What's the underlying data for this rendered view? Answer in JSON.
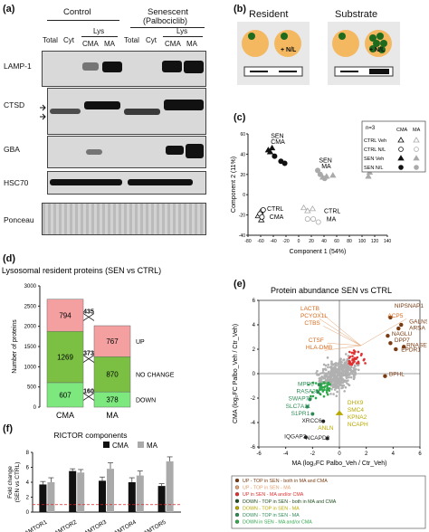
{
  "panels": {
    "a": "(a)",
    "b": "(b)",
    "c": "(c)",
    "d": "(d)",
    "e": "(e)",
    "f": "(f)"
  },
  "blot": {
    "group_control": "Control",
    "group_senescent": "Senescent",
    "group_senescent_sub": "(Palbociclib)",
    "col_total": "Total",
    "col_cyt": "Cyt",
    "col_lys": "Lys",
    "col_cma": "CMA",
    "col_ma": "MA",
    "rows": [
      "LAMP-1",
      "CTSD",
      "GBA",
      "HSC70",
      "Ponceau"
    ]
  },
  "schematic": {
    "resident": "Resident",
    "substrate": "Substrate",
    "nl": "+ N/L"
  },
  "chart_data": [
    {
      "type": "scatter",
      "xlabel": "Component 1 (54%)",
      "ylabel": "Component 2 (11%)",
      "xlim": [
        -80,
        140
      ],
      "ylim": [
        -40,
        60
      ],
      "x_ticks": [
        -80,
        -60,
        -40,
        -20,
        0,
        20,
        40,
        60,
        80,
        100,
        120,
        140
      ],
      "y_ticks": [
        -40,
        -20,
        0,
        20,
        40,
        60
      ],
      "annotation": "n=3",
      "legend_headers": [
        "CMA",
        "MA"
      ],
      "legend_rows": [
        "CTRL Veh",
        "CTRL N/L",
        "SEN Veh",
        "SEN N/L"
      ],
      "group_labels": [
        "SEN CMA",
        "SEN MA",
        "CTRL CMA",
        "CTRL MA"
      ],
      "points": [
        {
          "group": "SEN Veh CMA",
          "x": -48,
          "y": 44
        },
        {
          "group": "SEN Veh CMA",
          "x": -42,
          "y": 46
        },
        {
          "group": "SEN Veh CMA",
          "x": -45,
          "y": 42
        },
        {
          "group": "SEN N/L CMA",
          "x": -38,
          "y": 38
        },
        {
          "group": "SEN N/L CMA",
          "x": -28,
          "y": 33
        },
        {
          "group": "SEN N/L CMA",
          "x": -22,
          "y": 31
        },
        {
          "group": "CTRL Veh CMA",
          "x": -60,
          "y": -17
        },
        {
          "group": "CTRL Veh CMA",
          "x": -64,
          "y": -21
        },
        {
          "group": "CTRL Veh CMA",
          "x": -59,
          "y": -25
        },
        {
          "group": "CTRL N/L CMA",
          "x": -56,
          "y": -15
        },
        {
          "group": "CTRL N/L CMA",
          "x": -61,
          "y": -19
        },
        {
          "group": "CTRL N/L CMA",
          "x": -58,
          "y": -22
        },
        {
          "group": "SEN Veh MA",
          "x": 38,
          "y": 17
        },
        {
          "group": "SEN Veh MA",
          "x": 44,
          "y": 18
        },
        {
          "group": "SEN Veh MA",
          "x": 54,
          "y": 19
        },
        {
          "group": "SEN N/L MA",
          "x": 30,
          "y": 24
        },
        {
          "group": "SEN N/L MA",
          "x": 34,
          "y": 20
        },
        {
          "group": "SEN N/L MA",
          "x": 41,
          "y": 16
        },
        {
          "group": "CTRL Veh MA",
          "x": 8,
          "y": -13
        },
        {
          "group": "CTRL Veh MA",
          "x": 14,
          "y": -16
        },
        {
          "group": "CTRL Veh MA",
          "x": 22,
          "y": -14
        },
        {
          "group": "CTRL N/L MA",
          "x": 14,
          "y": -24
        },
        {
          "group": "CTRL N/L MA",
          "x": 23,
          "y": -24
        },
        {
          "group": "CTRL N/L MA",
          "x": 31,
          "y": -27
        },
        {
          "group": "SEN Veh MA",
          "x": 110,
          "y": 18
        },
        {
          "group": "SEN Veh MA",
          "x": 112,
          "y": 22
        }
      ]
    },
    {
      "type": "bar",
      "title": "Lysosomal resident proteins (SEN vs CTRL)",
      "ylabel": "Number of proteins",
      "ylim": [
        0,
        3000
      ],
      "y_ticks": [
        0,
        500,
        1000,
        1500,
        2000,
        2500,
        3000
      ],
      "categories": [
        "CMA",
        "MA"
      ],
      "series": [
        {
          "name": "DOWN",
          "values": [
            607,
            378
          ],
          "color": "#7de87d"
        },
        {
          "name": "NO CHANGE",
          "values": [
            1269,
            870
          ],
          "color": "#7bc043"
        },
        {
          "name": "UP",
          "values": [
            794,
            767
          ],
          "color": "#f4a0a0"
        }
      ],
      "transitions": [
        435,
        373,
        160
      ]
    },
    {
      "type": "scatter",
      "title": "Protein abundance SEN vs CTRL",
      "xlabel": "MA (log₂FC Palbo_Veh / Ctr_Veh)",
      "ylabel": "CMA  (log₂FC Palbo_Veh / Ctr_Veh)",
      "xlim": [
        -6,
        6
      ],
      "ylim": [
        -6,
        6
      ],
      "x_ticks": [
        -6,
        -4,
        -2,
        0,
        2,
        4,
        6
      ],
      "y_ticks": [
        -6,
        -4,
        -2,
        0,
        2,
        4,
        6
      ],
      "labels_up_both": [
        "NIPSNAP1",
        "GALNS",
        "ARSA",
        "NAGLU",
        "DPP7",
        "RNASET2",
        "EPDR1",
        "BPHL"
      ],
      "labels_up_cma": [
        "LACTB",
        "PCYOX1L",
        "CTBS",
        "CTSF",
        "HLA-DMB",
        "ACP5"
      ],
      "labels_down_cma": [
        "MPP6",
        "RASA3",
        "SWAP70",
        "SLC7A11",
        "S1PR1",
        "XRCC6",
        "IQGAP3",
        "NCAPD2"
      ],
      "labels_down_ma": [
        "DHX9",
        "SMC4",
        "KPNA2",
        "NCAPH",
        "ANLN"
      ],
      "legend": [
        {
          "text": "UP - TOP in SEN - both in MA and CMA",
          "color": "#7a3b12"
        },
        {
          "text": "UP - TOP in SEN - MA",
          "color": "#e0a070"
        },
        {
          "text": "UP in SEN - MA and/or CMA",
          "color": "#e03030"
        },
        {
          "text": "DOWN - TOP in SEN - both in MA and CMA",
          "color": "#1e4d1e"
        },
        {
          "text": "DOWN - TOP in SEN - MA",
          "color": "#b8a800"
        },
        {
          "text": "DOWN - TOP in SEN - MA",
          "color": "#2e8b57"
        },
        {
          "text": "DOWN in SEN - MA and/or CMA",
          "color": "#2ea84a"
        }
      ]
    },
    {
      "type": "bar",
      "title": "RICTOR components",
      "ylabel": "Fold change (SEN vs CTRL)",
      "ylim": [
        0,
        8
      ],
      "y_ticks": [
        0,
        2,
        4,
        6,
        8
      ],
      "categories": [
        "LAMTOR1",
        "LAMTOR2",
        "LAMTOR3",
        "LAMTOR4",
        "LAMTOR5"
      ],
      "series": [
        {
          "name": "CMA",
          "values": [
            3.7,
            5.5,
            4.2,
            4.0,
            3.5
          ],
          "errors": [
            0.4,
            0.3,
            0.5,
            0.6,
            0.3
          ],
          "color": "#111111"
        },
        {
          "name": "MA",
          "values": [
            4.0,
            5.3,
            5.8,
            4.9,
            6.8
          ],
          "errors": [
            0.6,
            0.4,
            0.8,
            0.6,
            0.6
          ],
          "color": "#aaaaaa"
        }
      ],
      "reference_line": 1
    }
  ]
}
